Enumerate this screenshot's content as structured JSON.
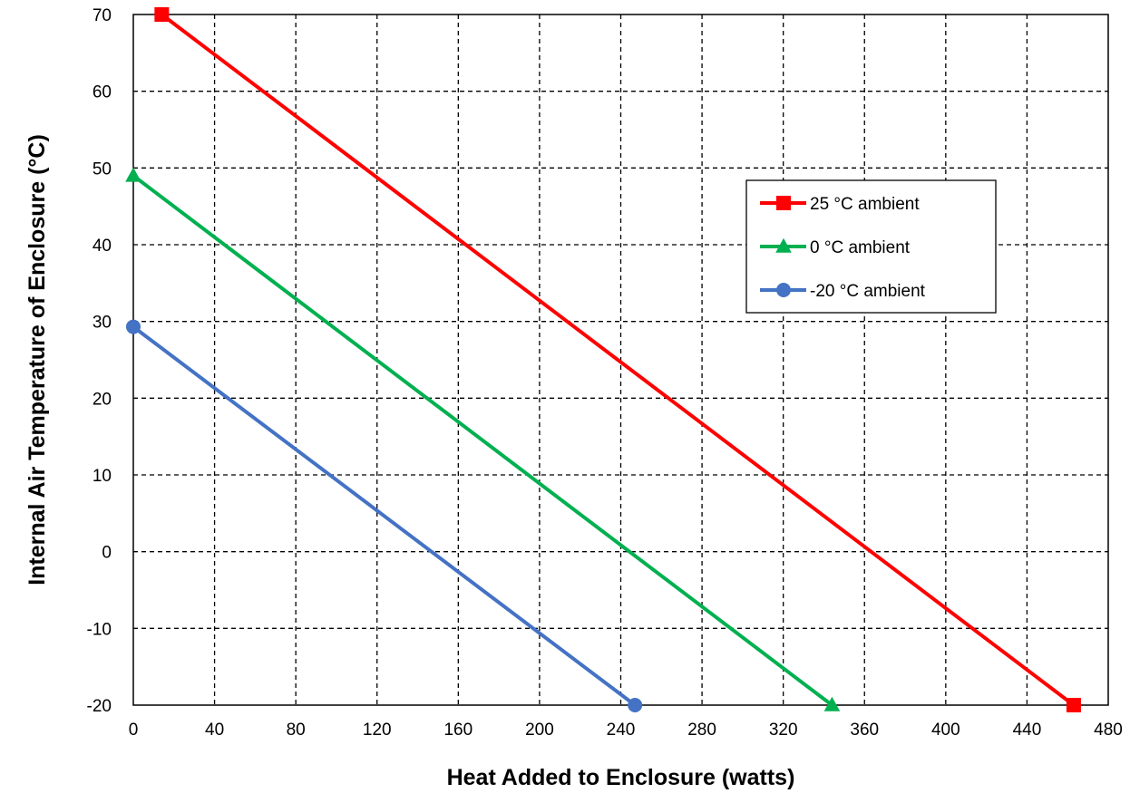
{
  "chart_data": {
    "type": "line",
    "title": "",
    "xlabel": "Heat Added to Enclosure (watts)",
    "ylabel": "Internal Air Temperature of Enclosure (°C)",
    "xlim": [
      0,
      480
    ],
    "ylim": [
      -20,
      70
    ],
    "xticks": [
      0,
      40,
      80,
      120,
      160,
      200,
      240,
      280,
      320,
      360,
      400,
      440,
      480
    ],
    "yticks": [
      -20,
      -10,
      0,
      10,
      20,
      30,
      40,
      50,
      60,
      70
    ],
    "grid": true,
    "legend_position": "right",
    "series": [
      {
        "name": "25 °C ambient",
        "color": "#ff0000",
        "marker": "square",
        "x": [
          14,
          463
        ],
        "y": [
          70,
          -20
        ]
      },
      {
        "name": "0 °C ambient",
        "color": "#00b050",
        "marker": "triangle",
        "x": [
          0,
          344
        ],
        "y": [
          49,
          -20
        ]
      },
      {
        "name": "-20 °C ambient",
        "color": "#4472c4",
        "marker": "circle",
        "x": [
          0,
          247
        ],
        "y": [
          29.3,
          -20
        ]
      }
    ]
  }
}
